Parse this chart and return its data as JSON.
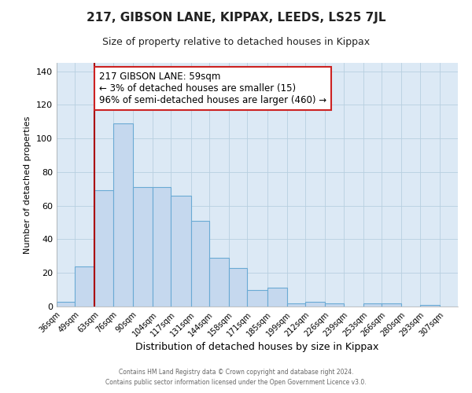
{
  "title": "217, GIBSON LANE, KIPPAX, LEEDS, LS25 7JL",
  "subtitle": "Size of property relative to detached houses in Kippax",
  "xlabel": "Distribution of detached houses by size in Kippax",
  "ylabel": "Number of detached properties",
  "footer_line1": "Contains HM Land Registry data © Crown copyright and database right 2024.",
  "footer_line2": "Contains public sector information licensed under the Open Government Licence v3.0.",
  "bin_labels": [
    "36sqm",
    "49sqm",
    "63sqm",
    "76sqm",
    "90sqm",
    "104sqm",
    "117sqm",
    "131sqm",
    "144sqm",
    "158sqm",
    "171sqm",
    "185sqm",
    "199sqm",
    "212sqm",
    "226sqm",
    "239sqm",
    "253sqm",
    "266sqm",
    "280sqm",
    "293sqm",
    "307sqm"
  ],
  "bin_edges": [
    36,
    49,
    63,
    76,
    90,
    104,
    117,
    131,
    144,
    158,
    171,
    185,
    199,
    212,
    226,
    239,
    253,
    266,
    280,
    293,
    307,
    320
  ],
  "bar_heights": [
    3,
    24,
    69,
    109,
    71,
    71,
    66,
    51,
    29,
    23,
    10,
    11,
    2,
    3,
    2,
    0,
    2,
    2,
    0,
    1,
    0
  ],
  "bar_color": "#c5d8ee",
  "bar_edge_color": "#6aaad4",
  "vline_x": 63,
  "vline_color": "#aa0000",
  "annotation_text": "217 GIBSON LANE: 59sqm\n← 3% of detached houses are smaller (15)\n96% of semi-detached houses are larger (460) →",
  "annotation_box_color": "#ffffff",
  "annotation_box_edge": "#cc2222",
  "ylim": [
    0,
    145
  ],
  "yticks": [
    0,
    20,
    40,
    60,
    80,
    100,
    120,
    140
  ],
  "grid_color": "#b8cfe0",
  "bg_color": "#dce9f5",
  "title_fontsize": 11,
  "subtitle_fontsize": 9,
  "ylabel_fontsize": 8,
  "xlabel_fontsize": 9,
  "annotation_fontsize": 8.5,
  "tick_fontsize": 7
}
